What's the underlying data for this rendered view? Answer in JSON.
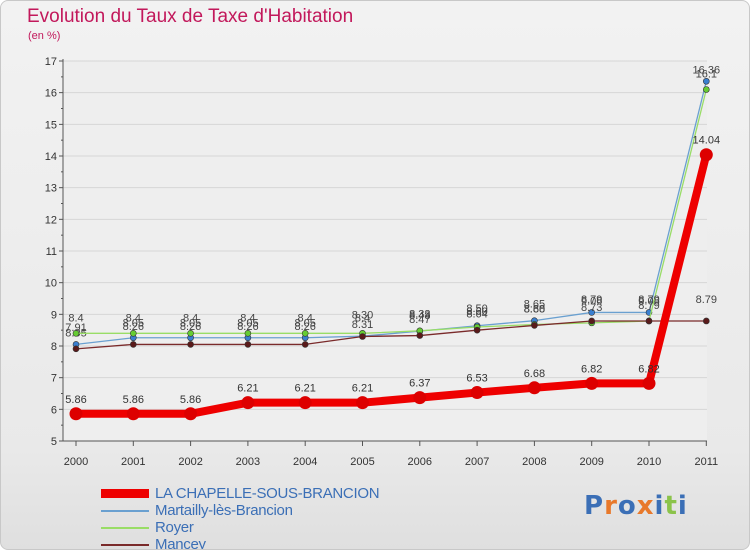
{
  "title": "Evolution du Taux de Taxe d'Habitation",
  "subtitle": "(en %)",
  "logo": {
    "text": "Proxiti",
    "colors": [
      "#3b6fb6",
      "#e8792b",
      "#3b6fb6",
      "#e8792b",
      "#3b6fb6",
      "#8bc34a",
      "#3b6fb6"
    ]
  },
  "chart_data": {
    "type": "line",
    "title": "Evolution du Taux de Taxe d'Habitation",
    "ylabel": "(en %)",
    "xlabel": "",
    "ylim": [
      5,
      17
    ],
    "yticks": [
      5,
      6,
      7,
      8,
      9,
      10,
      11,
      12,
      13,
      14,
      15,
      16,
      17
    ],
    "categories": [
      "2000",
      "2001",
      "2002",
      "2003",
      "2004",
      "2005",
      "2006",
      "2007",
      "2008",
      "2009",
      "2010",
      "2011"
    ],
    "series": [
      {
        "name": "Martailly-lès-Brancion",
        "color": "#6aa0d0",
        "marker": "#3a7fd0",
        "width": 1.3,
        "labelDy": -8,
        "values": [
          8.05,
          8.26,
          8.26,
          8.26,
          8.26,
          8.31,
          8.47,
          8.64,
          8.8,
          9.06,
          9.06,
          16.36
        ],
        "labels": [
          "8.05",
          "8.26",
          "8.26",
          "8.26",
          "8.26",
          "8.31",
          "8.47",
          "8.64",
          "8.80",
          "9.06",
          "9.06",
          "16.36"
        ]
      },
      {
        "name": "Royer",
        "color": "#99dd66",
        "marker": "#66cc33",
        "width": 1.3,
        "labelDy": -12,
        "values": [
          8.4,
          8.4,
          8.4,
          8.4,
          8.4,
          8.4,
          8.48,
          8.6,
          8.68,
          8.73,
          8.79,
          16.1
        ],
        "labels": [
          "8.4",
          "8.4",
          "8.4",
          "8.4",
          "8.4",
          "8.4",
          "8.48",
          "8.60",
          "8.68",
          "8.73",
          "8.79",
          "16.1"
        ]
      },
      {
        "name": "Mancey",
        "color": "#7a2a2a",
        "marker": "#5a1a1a",
        "width": 1.3,
        "labelDy": -18,
        "values": [
          7.91,
          8.05,
          8.05,
          8.05,
          8.05,
          8.3,
          8.33,
          8.5,
          8.65,
          8.79,
          8.79,
          8.79
        ],
        "labels": [
          "7.91",
          "8.05",
          "8.05",
          "8.05",
          "8.05",
          "8.30",
          "8.33",
          "8.50",
          "8.65",
          "8.79",
          "8.79",
          "8.79"
        ]
      },
      {
        "name": "LA CHAPELLE-SOUS-BRANCION",
        "color": "#ee0000",
        "marker": "#dd0000",
        "width": 8,
        "labelDy": -11,
        "main": true,
        "values": [
          5.86,
          5.86,
          5.86,
          6.21,
          6.21,
          6.21,
          6.37,
          6.53,
          6.68,
          6.82,
          6.82,
          14.04
        ],
        "labels": [
          "5.86",
          "5.86",
          "5.86",
          "6.21",
          "6.21",
          "6.21",
          "6.37",
          "6.53",
          "6.68",
          "6.82",
          "6.82",
          "14.04"
        ]
      }
    ],
    "legend": [
      "LA CHAPELLE-SOUS-BRANCION",
      "Martailly-lès-Brancion",
      "Royer",
      "Mancey"
    ],
    "legend_position": "bottom-left"
  }
}
